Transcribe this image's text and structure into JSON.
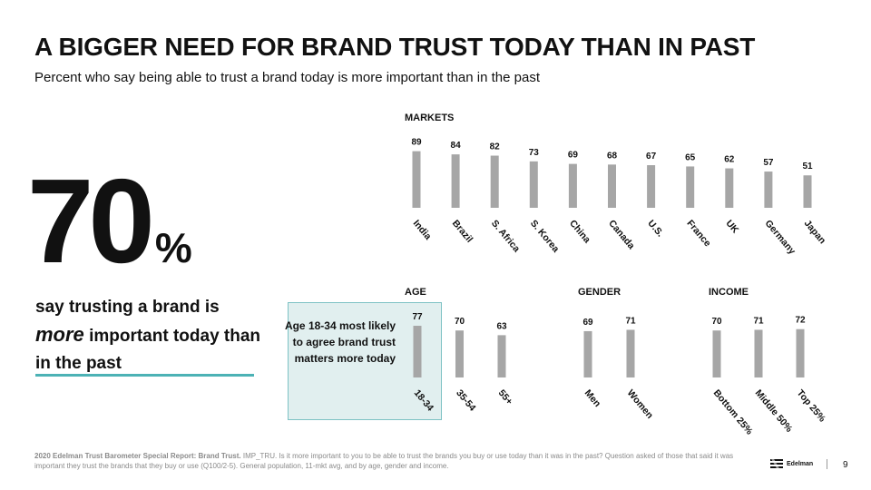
{
  "title": "A BIGGER NEED FOR BRAND TRUST TODAY THAN IN PAST",
  "subtitle": "Percent who say being able to trust a brand today is more important than in the past",
  "headline": {
    "number": "70",
    "unit": "%",
    "text_before": "say trusting a brand is",
    "text_emphasis": "more",
    "text_after": "important today than in the past"
  },
  "callout": "Age 18-34 most likely to agree brand trust matters more today",
  "footnote": {
    "bold": "2020 Edelman Trust Barometer Special Report: Brand Trust.",
    "text": "IMP_TRU. Is it more important to you to be able to trust the brands you buy or use today than it was in the past? Question asked of those that said it was important they trust the brands that they buy or use (Q100/2-5). General population, 11-mkt avg, and by age, gender and income."
  },
  "logo_text": "Edelman",
  "page_number": "9",
  "colors": {
    "bar": "#a6a6a6",
    "accent": "#4cb2b5",
    "callout_fill": "#c8e1e2"
  },
  "chart_data": [
    {
      "type": "bar",
      "title": "MARKETS",
      "categories": [
        "India",
        "Brazil",
        "S. Africa",
        "S. Korea",
        "China",
        "Canada",
        "U.S.",
        "France",
        "UK",
        "Germany",
        "Japan"
      ],
      "values": [
        89,
        84,
        82,
        73,
        69,
        68,
        67,
        65,
        62,
        57,
        51
      ],
      "ylim": [
        0,
        100
      ]
    },
    {
      "type": "bar",
      "title": "AGE",
      "categories": [
        "18-34",
        "35-54",
        "55+"
      ],
      "values": [
        77,
        70,
        63
      ],
      "ylim": [
        0,
        100
      ]
    },
    {
      "type": "bar",
      "title": "GENDER",
      "categories": [
        "Men",
        "Women"
      ],
      "values": [
        69,
        71
      ],
      "ylim": [
        0,
        100
      ]
    },
    {
      "type": "bar",
      "title": "INCOME",
      "categories": [
        "Bottom 25%",
        "Middle 50%",
        "Top 25%"
      ],
      "values": [
        70,
        71,
        72
      ],
      "ylim": [
        0,
        100
      ]
    }
  ]
}
